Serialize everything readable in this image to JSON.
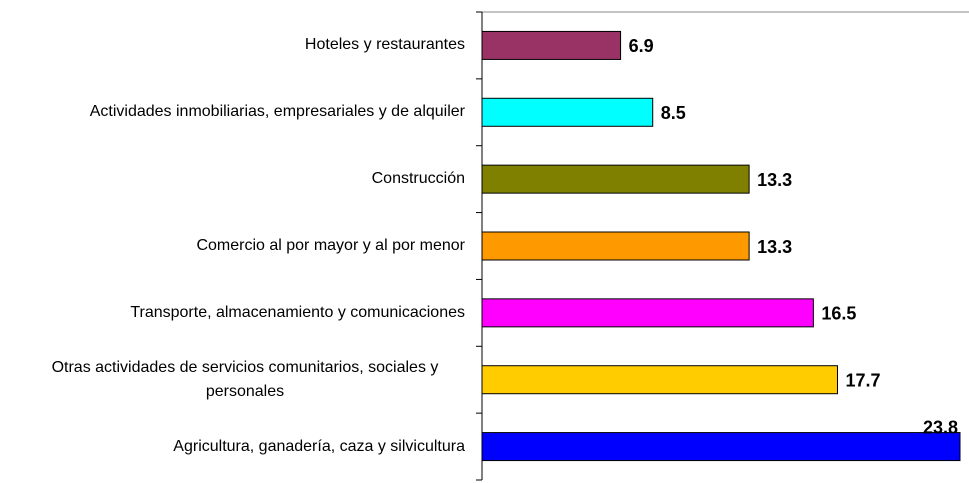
{
  "chart_data": {
    "type": "bar",
    "orientation": "horizontal",
    "categories": [
      "Hoteles y restaurantes",
      "Actividades inmobiliarias, empresariales y de alquiler",
      "Construcción",
      "Comercio al por mayor y al por menor",
      "Transporte, almacenamiento y comunicaciones",
      "Otras actividades de servicios comunitarios, sociales y personales",
      "Agricultura, ganadería, caza y silvicultura"
    ],
    "values": [
      6.9,
      8.5,
      13.3,
      13.3,
      16.5,
      17.7,
      23.8
    ],
    "colors": [
      "#993366",
      "#00ffff",
      "#808000",
      "#ff9900",
      "#ff00ff",
      "#ffcc00",
      "#0000ff"
    ]
  }
}
